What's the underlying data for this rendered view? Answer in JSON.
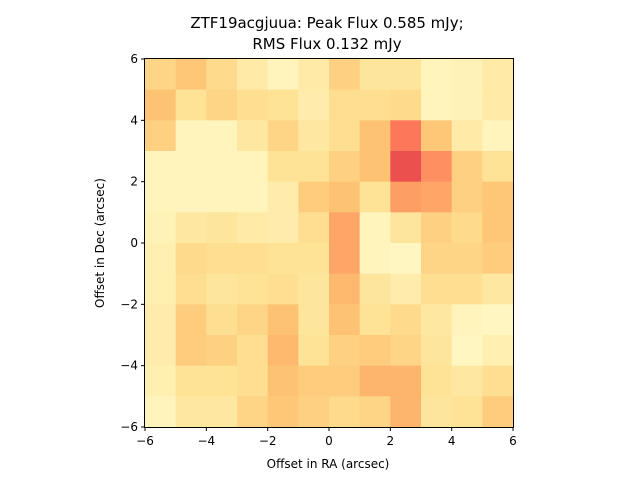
{
  "chart_data": {
    "type": "heatmap",
    "title": "ZTF19acgjuua: Peak Flux 0.585 mJy;",
    "subtitle": "RMS Flux 0.132 mJy",
    "xlabel": "Offset in RA (arcsec)",
    "ylabel": "Offset in Dec (arcsec)",
    "xlim": [
      -6,
      6
    ],
    "ylim": [
      -6,
      6
    ],
    "xticks": [
      "−6",
      "−4",
      "−2",
      "0",
      "2",
      "4",
      "6"
    ],
    "yticks": [
      "−6",
      "−4",
      "−2",
      "0",
      "2",
      "4",
      "6"
    ],
    "grid": false,
    "colormap": "YlOrRd",
    "cell_size_arcsec": 1.0,
    "x_centers": [
      -5.5,
      -4.5,
      -3.5,
      -2.5,
      -1.5,
      -0.5,
      0.5,
      1.5,
      2.5,
      3.5,
      4.5,
      5.5
    ],
    "y_centers_top_to_bottom": [
      5.5,
      4.5,
      3.5,
      2.5,
      1.5,
      0.5,
      -0.5,
      -1.5,
      -2.5,
      -3.5,
      -4.5,
      -5.5
    ],
    "values_top_to_bottom": [
      [
        0.3,
        0.36,
        0.28,
        0.18,
        0.1,
        0.18,
        0.32,
        0.22,
        0.22,
        0.1,
        0.12,
        0.18
      ],
      [
        0.38,
        0.24,
        0.3,
        0.26,
        0.24,
        0.16,
        0.26,
        0.26,
        0.28,
        0.1,
        0.12,
        0.18
      ],
      [
        0.32,
        0.1,
        0.1,
        0.2,
        0.3,
        0.2,
        0.26,
        0.38,
        0.62,
        0.36,
        0.18,
        0.1
      ],
      [
        0.1,
        0.1,
        0.1,
        0.1,
        0.24,
        0.24,
        0.32,
        0.38,
        0.74,
        0.56,
        0.32,
        0.24
      ],
      [
        0.1,
        0.1,
        0.1,
        0.1,
        0.16,
        0.34,
        0.38,
        0.24,
        0.52,
        0.5,
        0.32,
        0.36
      ],
      [
        0.12,
        0.2,
        0.22,
        0.18,
        0.16,
        0.26,
        0.5,
        0.1,
        0.22,
        0.32,
        0.28,
        0.36
      ],
      [
        0.14,
        0.28,
        0.26,
        0.26,
        0.24,
        0.24,
        0.5,
        0.1,
        0.08,
        0.3,
        0.3,
        0.34
      ],
      [
        0.14,
        0.26,
        0.22,
        0.24,
        0.26,
        0.22,
        0.42,
        0.22,
        0.16,
        0.26,
        0.26,
        0.2
      ],
      [
        0.16,
        0.34,
        0.26,
        0.3,
        0.38,
        0.22,
        0.38,
        0.24,
        0.28,
        0.2,
        0.1,
        0.08
      ],
      [
        0.16,
        0.34,
        0.32,
        0.26,
        0.42,
        0.24,
        0.32,
        0.34,
        0.3,
        0.22,
        0.08,
        0.14
      ],
      [
        0.14,
        0.24,
        0.24,
        0.26,
        0.38,
        0.34,
        0.34,
        0.44,
        0.44,
        0.24,
        0.2,
        0.26
      ],
      [
        0.1,
        0.2,
        0.2,
        0.3,
        0.36,
        0.32,
        0.28,
        0.3,
        0.44,
        0.22,
        0.24,
        0.34
      ]
    ]
  }
}
